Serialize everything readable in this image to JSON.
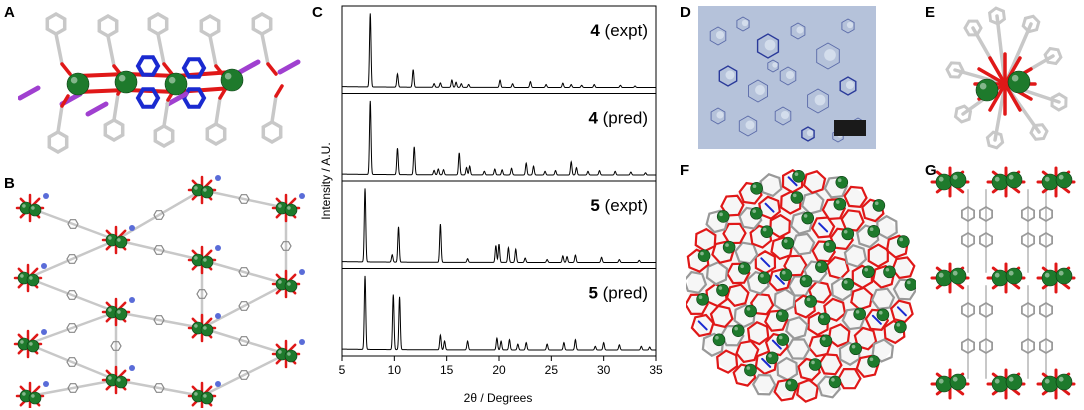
{
  "panels": {
    "A": "A",
    "B": "B",
    "C": "C",
    "D": "D",
    "E": "E",
    "F": "F",
    "G": "G"
  },
  "chart_data": {
    "type": "line",
    "xlabel": "2θ / Degrees",
    "ylabel": "Intensity / A.U.",
    "xlim": [
      5,
      35
    ],
    "xticks": [
      5,
      10,
      15,
      20,
      25,
      30,
      35
    ],
    "series": [
      {
        "compound": "4",
        "condition": "(expt)",
        "peaks": [
          [
            7.7,
            1.0
          ],
          [
            10.3,
            0.18
          ],
          [
            11.8,
            0.24
          ],
          [
            13.8,
            0.05
          ],
          [
            14.4,
            0.06
          ],
          [
            15.5,
            0.1
          ],
          [
            15.9,
            0.07
          ],
          [
            16.4,
            0.05
          ],
          [
            17.1,
            0.04
          ],
          [
            20.1,
            0.1
          ],
          [
            21.3,
            0.05
          ],
          [
            23.0,
            0.08
          ],
          [
            24.5,
            0.04
          ],
          [
            26.1,
            0.06
          ],
          [
            26.9,
            0.04
          ],
          [
            27.9,
            0.03
          ],
          [
            29.1,
            0.04
          ],
          [
            31.6,
            0.03
          ],
          [
            33.0,
            0.02
          ]
        ]
      },
      {
        "compound": "4",
        "condition": "(pred)",
        "peaks": [
          [
            7.7,
            1.0
          ],
          [
            10.3,
            0.36
          ],
          [
            11.9,
            0.38
          ],
          [
            13.8,
            0.06
          ],
          [
            14.2,
            0.08
          ],
          [
            14.7,
            0.07
          ],
          [
            16.2,
            0.3
          ],
          [
            16.9,
            0.1
          ],
          [
            17.2,
            0.12
          ],
          [
            18.6,
            0.05
          ],
          [
            19.6,
            0.08
          ],
          [
            20.3,
            0.07
          ],
          [
            21.2,
            0.09
          ],
          [
            22.6,
            0.16
          ],
          [
            23.3,
            0.12
          ],
          [
            24.4,
            0.05
          ],
          [
            25.4,
            0.06
          ],
          [
            26.9,
            0.18
          ],
          [
            27.4,
            0.1
          ],
          [
            28.5,
            0.05
          ],
          [
            29.6,
            0.06
          ],
          [
            31.1,
            0.05
          ],
          [
            32.6,
            0.04
          ],
          [
            34.0,
            0.03
          ]
        ]
      },
      {
        "compound": "5",
        "condition": "(expt)",
        "peaks": [
          [
            7.2,
            1.0
          ],
          [
            9.8,
            0.1
          ],
          [
            10.4,
            0.48
          ],
          [
            14.4,
            0.52
          ],
          [
            17.0,
            0.05
          ],
          [
            19.7,
            0.23
          ],
          [
            20.0,
            0.25
          ],
          [
            20.9,
            0.2
          ],
          [
            21.6,
            0.18
          ],
          [
            22.5,
            0.06
          ],
          [
            24.6,
            0.04
          ],
          [
            26.1,
            0.09
          ],
          [
            26.5,
            0.08
          ],
          [
            27.3,
            0.1
          ],
          [
            29.8,
            0.07
          ],
          [
            31.5,
            0.04
          ],
          [
            33.4,
            0.03
          ]
        ]
      },
      {
        "compound": "5",
        "condition": "(pred)",
        "peaks": [
          [
            7.2,
            1.0
          ],
          [
            9.9,
            0.75
          ],
          [
            10.5,
            0.72
          ],
          [
            14.4,
            0.2
          ],
          [
            14.8,
            0.12
          ],
          [
            17.0,
            0.12
          ],
          [
            19.8,
            0.16
          ],
          [
            20.2,
            0.12
          ],
          [
            21.0,
            0.14
          ],
          [
            21.8,
            0.08
          ],
          [
            22.6,
            0.1
          ],
          [
            24.6,
            0.08
          ],
          [
            26.2,
            0.1
          ],
          [
            27.3,
            0.14
          ],
          [
            29.2,
            0.05
          ],
          [
            30.0,
            0.1
          ],
          [
            31.5,
            0.07
          ],
          [
            33.6,
            0.05
          ],
          [
            34.4,
            0.04
          ]
        ]
      }
    ]
  },
  "colors": {
    "metal": "#1e7a2c",
    "oxygen": "#e01818",
    "nitrogen": "#1a2ad0",
    "carbon": "#c8c8c8",
    "ligand_alt": "#a040d0",
    "micrograph_bg": "#a8b8d4",
    "scalebar": "#1a1a1a"
  }
}
